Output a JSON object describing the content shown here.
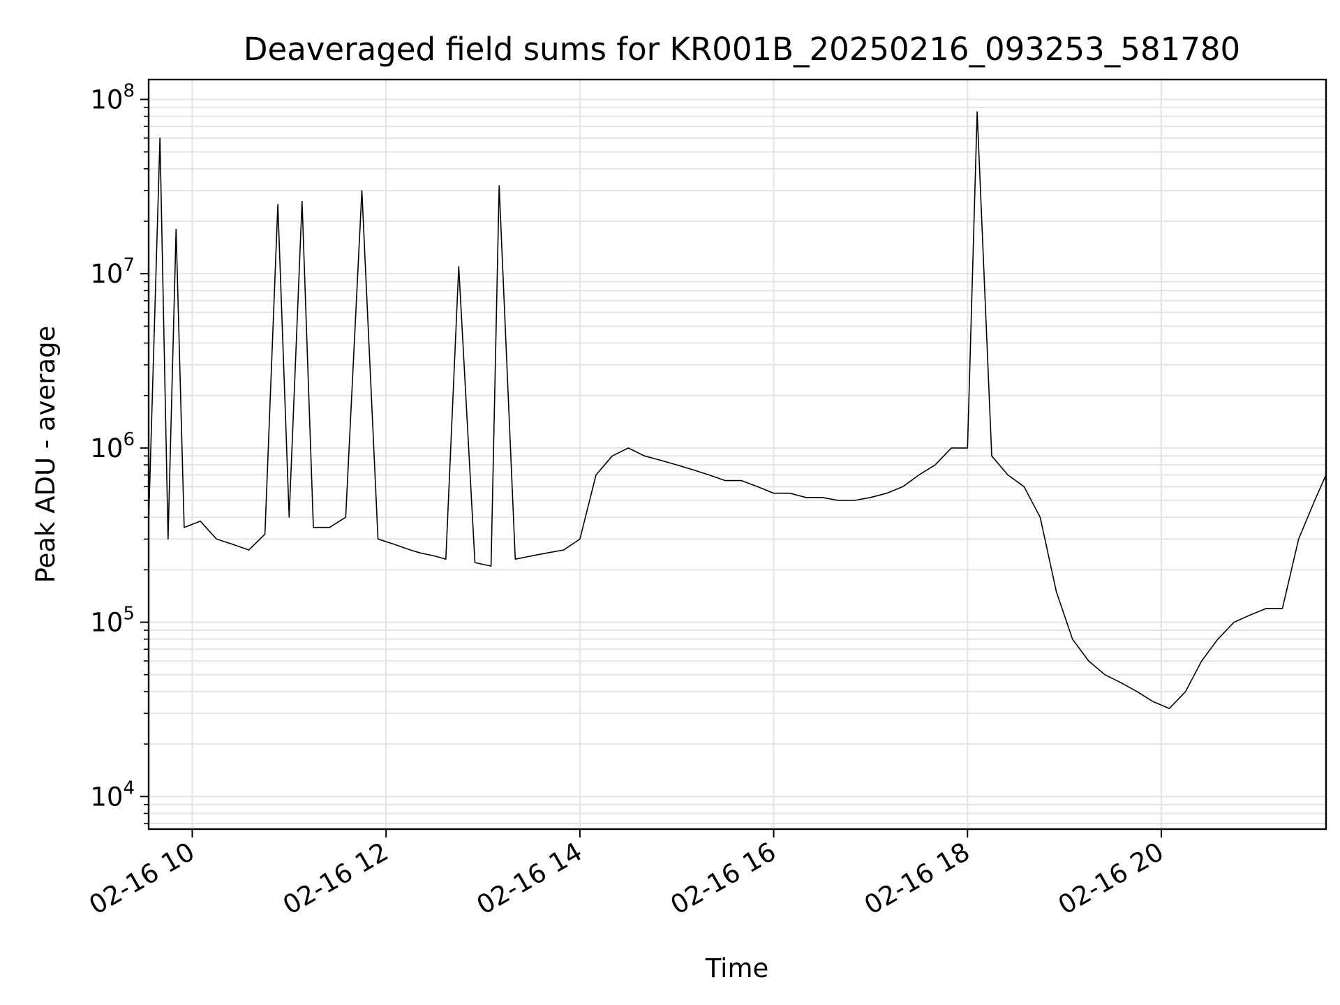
{
  "chart_data": {
    "type": "line",
    "title": "Deaveraged field sums for KR001B_20250216_093253_581780",
    "xlabel": "Time",
    "ylabel": "Peak ADU - average",
    "yscale": "log",
    "ylim": [
      6500,
      130000000
    ],
    "xlim": [
      "2025-02-16 09:33",
      "2025-02-16 21:42"
    ],
    "x_ticks": [
      {
        "label": "02-16 10",
        "value": "2025-02-16 10:00"
      },
      {
        "label": "02-16 12",
        "value": "2025-02-16 12:00"
      },
      {
        "label": "02-16 14",
        "value": "2025-02-16 14:00"
      },
      {
        "label": "02-16 16",
        "value": "2025-02-16 16:00"
      },
      {
        "label": "02-16 18",
        "value": "2025-02-16 18:00"
      },
      {
        "label": "02-16 20",
        "value": "2025-02-16 20:00"
      }
    ],
    "y_ticks": [
      {
        "base": "10",
        "exp": "4",
        "value": 10000
      },
      {
        "base": "10",
        "exp": "5",
        "value": 100000
      },
      {
        "base": "10",
        "exp": "6",
        "value": 1000000
      },
      {
        "base": "10",
        "exp": "7",
        "value": 10000000
      },
      {
        "base": "10",
        "exp": "8",
        "value": 100000000
      }
    ],
    "grid": true,
    "line_color": "#000000",
    "series": [
      {
        "x": [
          "2025-02-16 09:33",
          "2025-02-16 09:40",
          "2025-02-16 09:45",
          "2025-02-16 09:50",
          "2025-02-16 09:55",
          "2025-02-16 10:05",
          "2025-02-16 10:15",
          "2025-02-16 10:25",
          "2025-02-16 10:35",
          "2025-02-16 10:45",
          "2025-02-16 10:53",
          "2025-02-16 11:00",
          "2025-02-16 11:08",
          "2025-02-16 11:15",
          "2025-02-16 11:25",
          "2025-02-16 11:35",
          "2025-02-16 11:45",
          "2025-02-16 11:55",
          "2025-02-16 12:05",
          "2025-02-16 12:15",
          "2025-02-16 12:21",
          "2025-02-16 12:30",
          "2025-02-16 12:37",
          "2025-02-16 12:45",
          "2025-02-16 12:55",
          "2025-02-16 13:05",
          "2025-02-16 13:10",
          "2025-02-16 13:20",
          "2025-02-16 13:30",
          "2025-02-16 13:40",
          "2025-02-16 13:50",
          "2025-02-16 14:00",
          "2025-02-16 14:10",
          "2025-02-16 14:20",
          "2025-02-16 14:30",
          "2025-02-16 14:40",
          "2025-02-16 14:50",
          "2025-02-16 15:00",
          "2025-02-16 15:10",
          "2025-02-16 15:20",
          "2025-02-16 15:30",
          "2025-02-16 15:40",
          "2025-02-16 15:50",
          "2025-02-16 16:00",
          "2025-02-16 16:10",
          "2025-02-16 16:20",
          "2025-02-16 16:30",
          "2025-02-16 16:40",
          "2025-02-16 16:50",
          "2025-02-16 17:00",
          "2025-02-16 17:10",
          "2025-02-16 17:20",
          "2025-02-16 17:30",
          "2025-02-16 17:40",
          "2025-02-16 17:50",
          "2025-02-16 18:00",
          "2025-02-16 18:06",
          "2025-02-16 18:15",
          "2025-02-16 18:25",
          "2025-02-16 18:35",
          "2025-02-16 18:45",
          "2025-02-16 18:55",
          "2025-02-16 19:05",
          "2025-02-16 19:15",
          "2025-02-16 19:25",
          "2025-02-16 19:35",
          "2025-02-16 19:45",
          "2025-02-16 19:55",
          "2025-02-16 20:05",
          "2025-02-16 20:15",
          "2025-02-16 20:25",
          "2025-02-16 20:35",
          "2025-02-16 20:45",
          "2025-02-16 20:55",
          "2025-02-16 21:05",
          "2025-02-16 21:15",
          "2025-02-16 21:25",
          "2025-02-16 21:35",
          "2025-02-16 21:42"
        ],
        "y": [
          380000,
          60000000,
          300000,
          18000000,
          350000,
          380000,
          300000,
          280000,
          260000,
          320000,
          25000000,
          400000,
          26000000,
          350000,
          350000,
          400000,
          30000000,
          300000,
          280000,
          260000,
          250000,
          240000,
          230000,
          11000000,
          220000,
          210000,
          32000000,
          230000,
          240000,
          250000,
          260000,
          300000,
          700000,
          900000,
          1000000,
          900000,
          850000,
          800000,
          750000,
          700000,
          650000,
          650000,
          600000,
          550000,
          550000,
          520000,
          520000,
          500000,
          500000,
          520000,
          550000,
          600000,
          700000,
          800000,
          1000000,
          1000000,
          85000000,
          900000,
          700000,
          600000,
          400000,
          150000,
          80000,
          60000,
          50000,
          45000,
          40000,
          35000,
          32000,
          40000,
          60000,
          80000,
          100000,
          110000,
          120000,
          120000,
          300000,
          500000,
          700000
        ]
      }
    ]
  }
}
